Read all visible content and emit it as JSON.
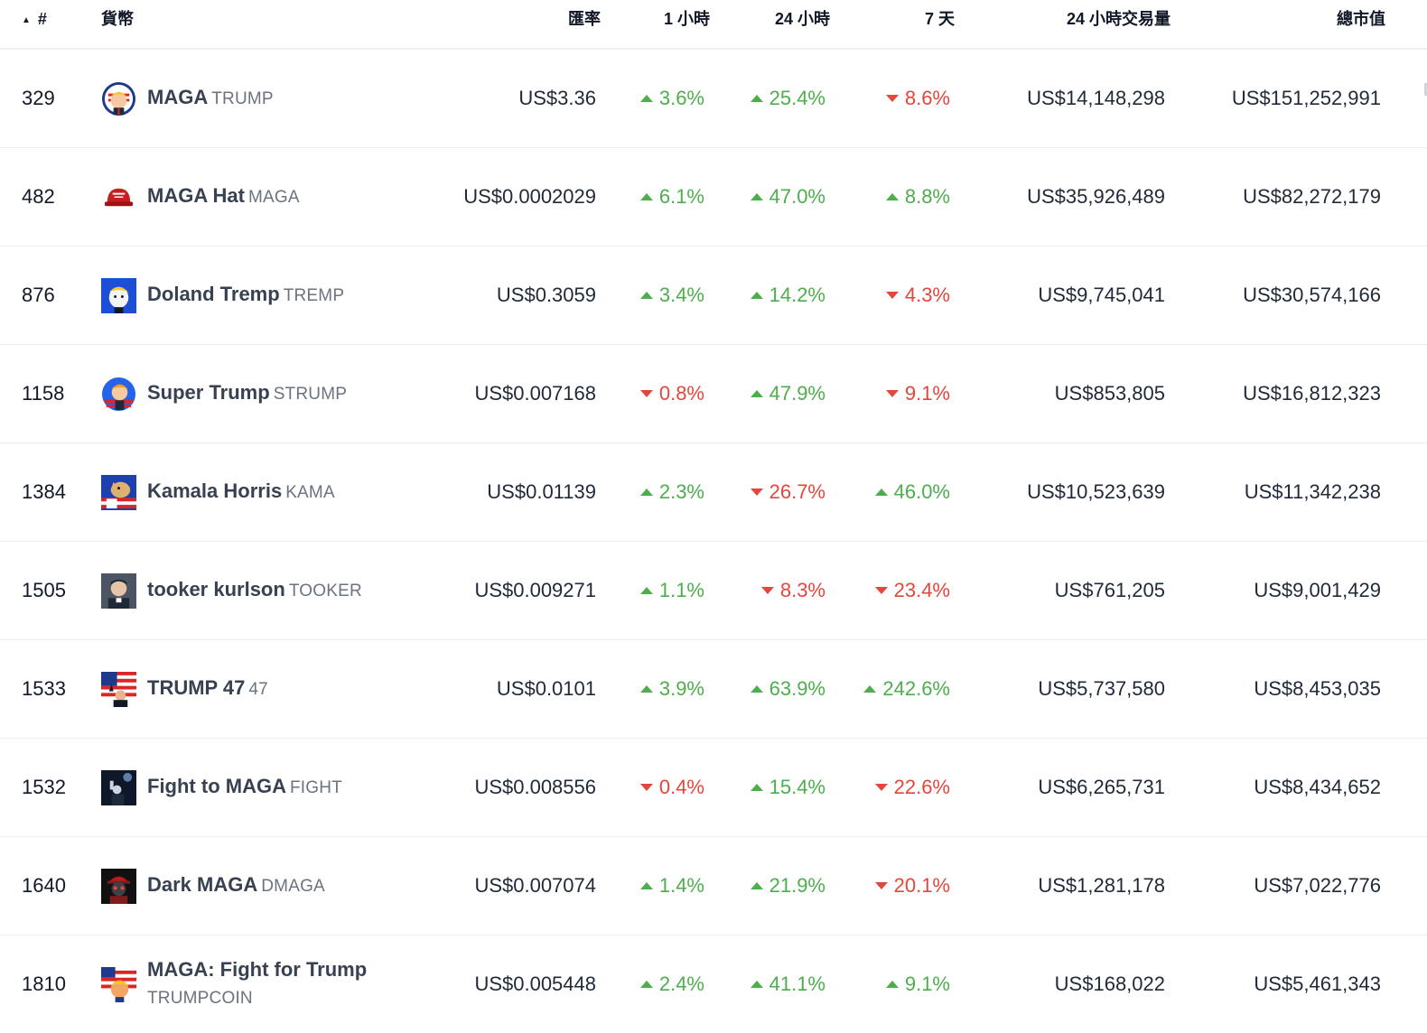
{
  "header": {
    "rank": "#",
    "coin": "貨幣",
    "price": "匯率",
    "h1": "1 小時",
    "h24": "24 小時",
    "d7": "7 天",
    "volume": "24 小時交易量",
    "market_cap": "總市值",
    "sort_icon": "▲"
  },
  "colors": {
    "up": "#4cae4c",
    "down": "#e5463c",
    "text": "#1f2937",
    "symbol": "#6b7280",
    "divider": "#eceff3"
  },
  "rows": [
    {
      "rank": "329",
      "name": "MAGA",
      "symbol": "TRUMP",
      "icon": "trump-cartoon-icon",
      "price": "US$3.36",
      "h1": "3.6%",
      "h1_dir": "up",
      "h24": "25.4%",
      "h24_dir": "up",
      "d7": "8.6%",
      "d7_dir": "down",
      "volume": "US$14,148,298",
      "market_cap": "US$151,252,991"
    },
    {
      "rank": "482",
      "name": "MAGA Hat",
      "symbol": "MAGA",
      "icon": "red-hat-icon",
      "price": "US$0.0002029",
      "h1": "6.1%",
      "h1_dir": "up",
      "h24": "47.0%",
      "h24_dir": "up",
      "d7": "8.8%",
      "d7_dir": "up",
      "volume": "US$35,926,489",
      "market_cap": "US$82,272,179"
    },
    {
      "rank": "876",
      "name": "Doland Tremp",
      "symbol": "TREMP",
      "icon": "tremp-cartoon-icon",
      "price": "US$0.3059",
      "h1": "3.4%",
      "h1_dir": "up",
      "h24": "14.2%",
      "h24_dir": "up",
      "d7": "4.3%",
      "d7_dir": "down",
      "volume": "US$9,745,041",
      "market_cap": "US$30,574,166"
    },
    {
      "rank": "1158",
      "name": "Super Trump",
      "symbol": "STRUMP",
      "icon": "super-trump-icon",
      "price": "US$0.007168",
      "h1": "0.8%",
      "h1_dir": "down",
      "h24": "47.9%",
      "h24_dir": "up",
      "d7": "9.1%",
      "d7_dir": "down",
      "volume": "US$853,805",
      "market_cap": "US$16,812,323"
    },
    {
      "rank": "1384",
      "name": "Kamala Horris",
      "symbol": "KAMA",
      "icon": "horse-flag-icon",
      "price": "US$0.01139",
      "h1": "2.3%",
      "h1_dir": "up",
      "h24": "26.7%",
      "h24_dir": "down",
      "d7": "46.0%",
      "d7_dir": "up",
      "volume": "US$10,523,639",
      "market_cap": "US$11,342,238"
    },
    {
      "rank": "1505",
      "name": "tooker kurlson",
      "symbol": "TOOKER",
      "icon": "tooker-avatar-icon",
      "price": "US$0.009271",
      "h1": "1.1%",
      "h1_dir": "up",
      "h24": "8.3%",
      "h24_dir": "down",
      "d7": "23.4%",
      "d7_dir": "down",
      "volume": "US$761,205",
      "market_cap": "US$9,001,429"
    },
    {
      "rank": "1533",
      "name": "TRUMP 47",
      "symbol": "47",
      "icon": "flag-portrait-icon",
      "price": "US$0.0101",
      "h1": "3.9%",
      "h1_dir": "up",
      "h24": "63.9%",
      "h24_dir": "up",
      "d7": "242.6%",
      "d7_dir": "up",
      "volume": "US$5,737,580",
      "market_cap": "US$8,453,035"
    },
    {
      "rank": "1532",
      "name": "Fight to MAGA",
      "symbol": "FIGHT",
      "icon": "fist-silhouette-icon",
      "price": "US$0.008556",
      "h1": "0.4%",
      "h1_dir": "down",
      "h24": "15.4%",
      "h24_dir": "up",
      "d7": "22.6%",
      "d7_dir": "down",
      "volume": "US$6,265,731",
      "market_cap": "US$8,434,652"
    },
    {
      "rank": "1640",
      "name": "Dark MAGA",
      "symbol": "DMAGA",
      "icon": "dark-maga-icon",
      "price": "US$0.007074",
      "h1": "1.4%",
      "h1_dir": "up",
      "h24": "21.9%",
      "h24_dir": "up",
      "d7": "20.1%",
      "d7_dir": "down",
      "volume": "US$1,281,178",
      "market_cap": "US$7,022,776"
    },
    {
      "rank": "1810",
      "name": "MAGA: Fight for Trump",
      "symbol": "TRUMPCOIN",
      "icon": "trump-flag-icon",
      "price": "US$0.005448",
      "h1": "2.4%",
      "h1_dir": "up",
      "h24": "41.1%",
      "h24_dir": "up",
      "d7": "9.1%",
      "d7_dir": "up",
      "volume": "US$168,022",
      "market_cap": "US$5,461,343"
    }
  ]
}
